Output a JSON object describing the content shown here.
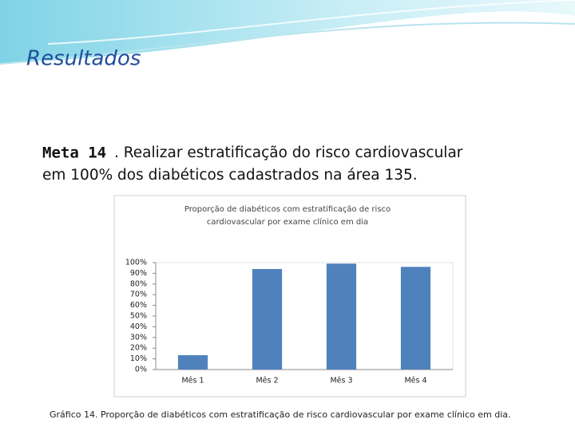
{
  "slide": {
    "heading": "Resultados",
    "meta_label": "Meta 14",
    "lines": [
      ". Realizar estratificação do risco cardiovascular",
      "em 100% dos diabéticos cadastrados na área 135."
    ],
    "caption": "Gráfico 14. Proporção de diabéticos com estratificação de risco cardiovascular por exame clínico em dia."
  },
  "chart_data": {
    "type": "bar",
    "title_lines": [
      "Proporção de diabéticos com estratificação de risco",
      "cardiovascular por exame clínico em dia"
    ],
    "categories": [
      "Mês 1",
      "Mês 2",
      "Mês 3",
      "Mês 4"
    ],
    "values": [
      13.4,
      94,
      99,
      96
    ],
    "color": "#4f81bd",
    "ylim": [
      0,
      100
    ],
    "yticks": [
      {
        "value": 0,
        "label": "0%"
      },
      {
        "value": 10,
        "label": "10%"
      },
      {
        "value": 20,
        "label": "20%"
      },
      {
        "value": 30,
        "label": "30%"
      },
      {
        "value": 40,
        "label": "40%"
      },
      {
        "value": 50,
        "label": "50%"
      },
      {
        "value": 60,
        "label": "60%"
      },
      {
        "value": 70,
        "label": "70%"
      },
      {
        "value": 80,
        "label": "80%"
      },
      {
        "value": 90,
        "label": "90%"
      },
      {
        "value": 100,
        "label": "100%"
      }
    ],
    "grid": false
  }
}
